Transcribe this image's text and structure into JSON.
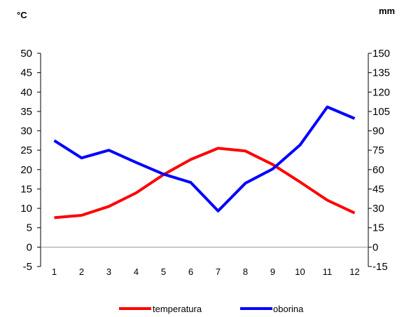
{
  "chart_data": {
    "type": "line",
    "y_unit_left": "°C",
    "y_unit_right": "mm",
    "categories": [
      "1",
      "2",
      "3",
      "4",
      "5",
      "6",
      "7",
      "8",
      "9",
      "10",
      "11",
      "12"
    ],
    "ylim_left": [
      -5,
      50
    ],
    "ylim_right": [
      -15,
      150
    ],
    "yticks_left": [
      "-5",
      "0",
      "5",
      "10",
      "15",
      "20",
      "25",
      "30",
      "35",
      "40",
      "45",
      "50"
    ],
    "yticks_right": [
      "-15",
      "0",
      "15",
      "30",
      "45",
      "60",
      "75",
      "90",
      "105",
      "120",
      "135",
      "150"
    ],
    "series": [
      {
        "name": "temperatura",
        "axis": "left",
        "color": "#ff0000",
        "values": [
          7.6,
          8.2,
          10.5,
          14.0,
          18.7,
          22.6,
          25.5,
          24.8,
          21.3,
          16.8,
          12.1,
          8.8
        ]
      },
      {
        "name": "oborina",
        "axis": "right",
        "color": "#0000ff",
        "values": [
          82.5,
          69.0,
          75.0,
          65.5,
          56.5,
          50.0,
          28.0,
          49.5,
          60.5,
          79.0,
          108.5,
          99.5
        ]
      }
    ],
    "grid": false,
    "legend_position": "bottom"
  }
}
